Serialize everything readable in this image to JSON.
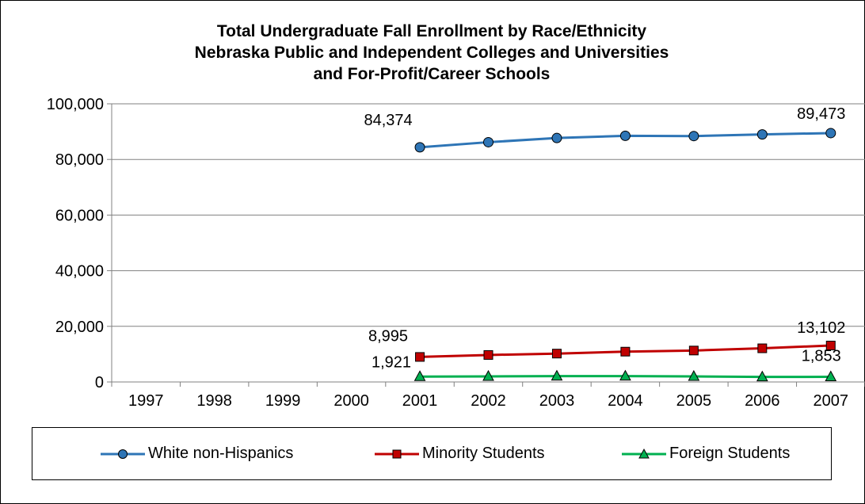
{
  "chart_data": {
    "type": "line",
    "title_lines": [
      "Total Undergraduate Fall Enrollment by Race/Ethnicity",
      "Nebraska Public and Independent Colleges and Universities",
      "and For-Profit/Career Schools"
    ],
    "categories": [
      "1997",
      "1998",
      "1999",
      "2000",
      "2001",
      "2002",
      "2003",
      "2004",
      "2005",
      "2006",
      "2007"
    ],
    "y_ticks": [
      "0",
      "20,000",
      "40,000",
      "60,000",
      "80,000",
      "100,000"
    ],
    "ylim": [
      0,
      100000
    ],
    "grid": true,
    "legend_position": "bottom",
    "series": [
      {
        "name": "White non-Hispanics",
        "color": "#2E75B6",
        "marker": "circle",
        "values": [
          null,
          null,
          null,
          null,
          84374,
          86200,
          87700,
          88500,
          88400,
          89000,
          89473
        ],
        "data_labels": [
          {
            "index": 4,
            "text": "84,374"
          },
          {
            "index": 10,
            "text": "89,473"
          }
        ]
      },
      {
        "name": "Minority Students",
        "color": "#C00000",
        "marker": "square",
        "values": [
          null,
          null,
          null,
          null,
          8995,
          9700,
          10200,
          10900,
          11300,
          12100,
          13102
        ],
        "data_labels": [
          {
            "index": 4,
            "text": "8,995"
          },
          {
            "index": 10,
            "text": "13,102"
          }
        ]
      },
      {
        "name": "Foreign Students",
        "color": "#00B050",
        "marker": "triangle",
        "values": [
          null,
          null,
          null,
          null,
          1921,
          2000,
          2100,
          2100,
          2000,
          1800,
          1853
        ],
        "data_labels": [
          {
            "index": 4,
            "text": "1,921"
          },
          {
            "index": 10,
            "text": "1,853"
          }
        ]
      }
    ]
  }
}
